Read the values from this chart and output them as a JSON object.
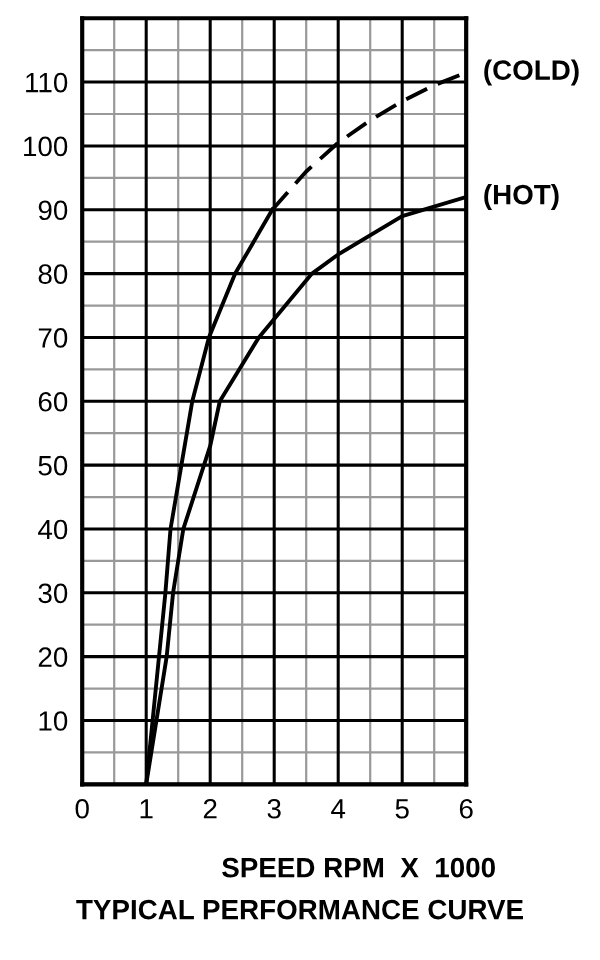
{
  "chart_data": {
    "type": "line",
    "xlabel": "SPEED RPM  X  1000",
    "annotations": [
      "TYPICAL PERFORMANCE CURVE"
    ],
    "series": [
      {
        "color": "#000000",
        "line_style": "solid",
        "x": [
          1,
          1.2,
          1.3,
          1.38,
          1.55,
          1.72,
          1.98,
          2.39,
          2.97
        ],
        "values": [
          0,
          20,
          30,
          40,
          50,
          60,
          70,
          80,
          90
        ]
      },
      {
        "name": "(COLD)",
        "color": "#000000",
        "line_style": "dashed",
        "x": [
          2.97,
          3.5,
          4,
          4.5,
          5,
          5.5,
          6
        ],
        "values": [
          90,
          96,
          100.5,
          104,
          107,
          109.5,
          111.5
        ]
      },
      {
        "name": "(HOT)",
        "color": "#000000",
        "line_style": "solid",
        "x": [
          1,
          1.32,
          1.42,
          1.58,
          2,
          2.15,
          2.76,
          3.59,
          4,
          5,
          6
        ],
        "values": [
          0,
          20,
          30,
          40,
          53,
          60,
          70,
          80,
          83,
          89,
          92
        ]
      }
    ],
    "xlim": [
      0,
      6
    ],
    "xticks": [
      0,
      1,
      2,
      3,
      4,
      5,
      6
    ],
    "ylim": [
      0,
      120
    ],
    "yticks": [
      {
        "value": 0,
        "label": null
      },
      10,
      20,
      30,
      40,
      50,
      60,
      70,
      80,
      90,
      100,
      110,
      {
        "value": 120,
        "label": null
      }
    ],
    "grid": true,
    "legend": false,
    "marker": "none"
  }
}
